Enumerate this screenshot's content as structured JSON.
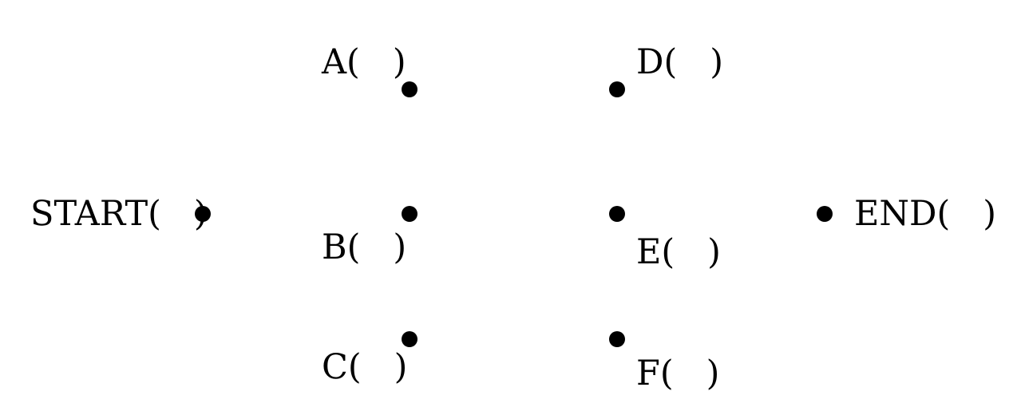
{
  "nodes": [
    {
      "id": "start",
      "label": "START(   )"
    },
    {
      "id": "a",
      "label": "A(   )"
    },
    {
      "id": "b",
      "label": "B(   )"
    },
    {
      "id": "c",
      "label": "C(   )"
    },
    {
      "id": "d",
      "label": "D(   )"
    },
    {
      "id": "e",
      "label": "E(   )"
    },
    {
      "id": "f",
      "label": "F(   )"
    },
    {
      "id": "end",
      "label": "END(   )"
    }
  ],
  "colors": {
    "node": "#000000",
    "text": "#000000",
    "background": "#ffffff"
  }
}
